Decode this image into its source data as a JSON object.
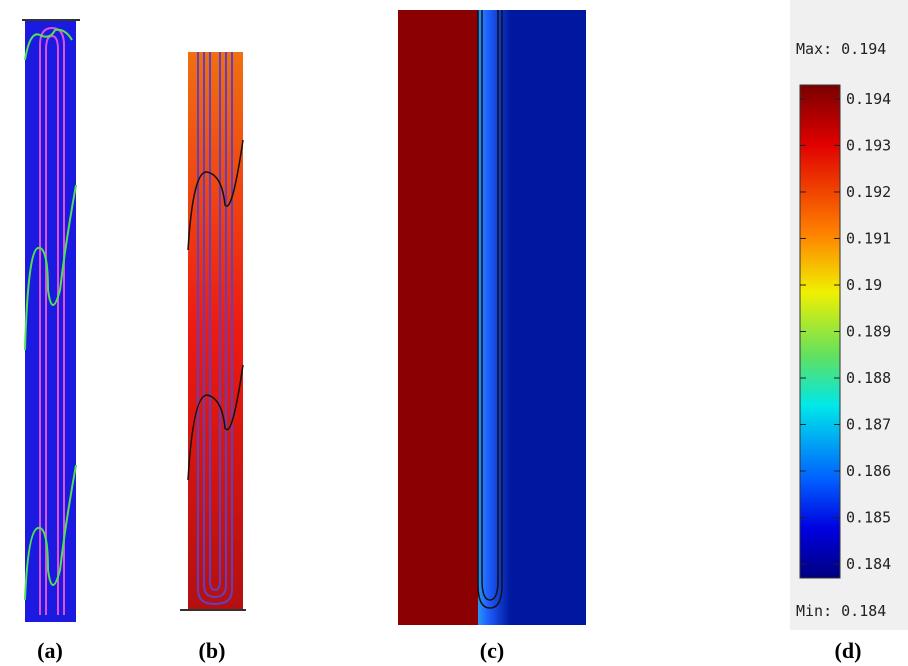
{
  "panels": {
    "labels": [
      "(a)",
      "(b)",
      "(c)",
      "(d)"
    ]
  },
  "colorbar": {
    "max_text": "Max: 0.194",
    "min_text": "Min: 0.184",
    "lim": [
      0.1837,
      0.1943
    ],
    "ticks": [
      0.184,
      0.185,
      0.186,
      0.187,
      0.188,
      0.189,
      0.19,
      0.191,
      0.192,
      0.193,
      0.194
    ]
  }
}
